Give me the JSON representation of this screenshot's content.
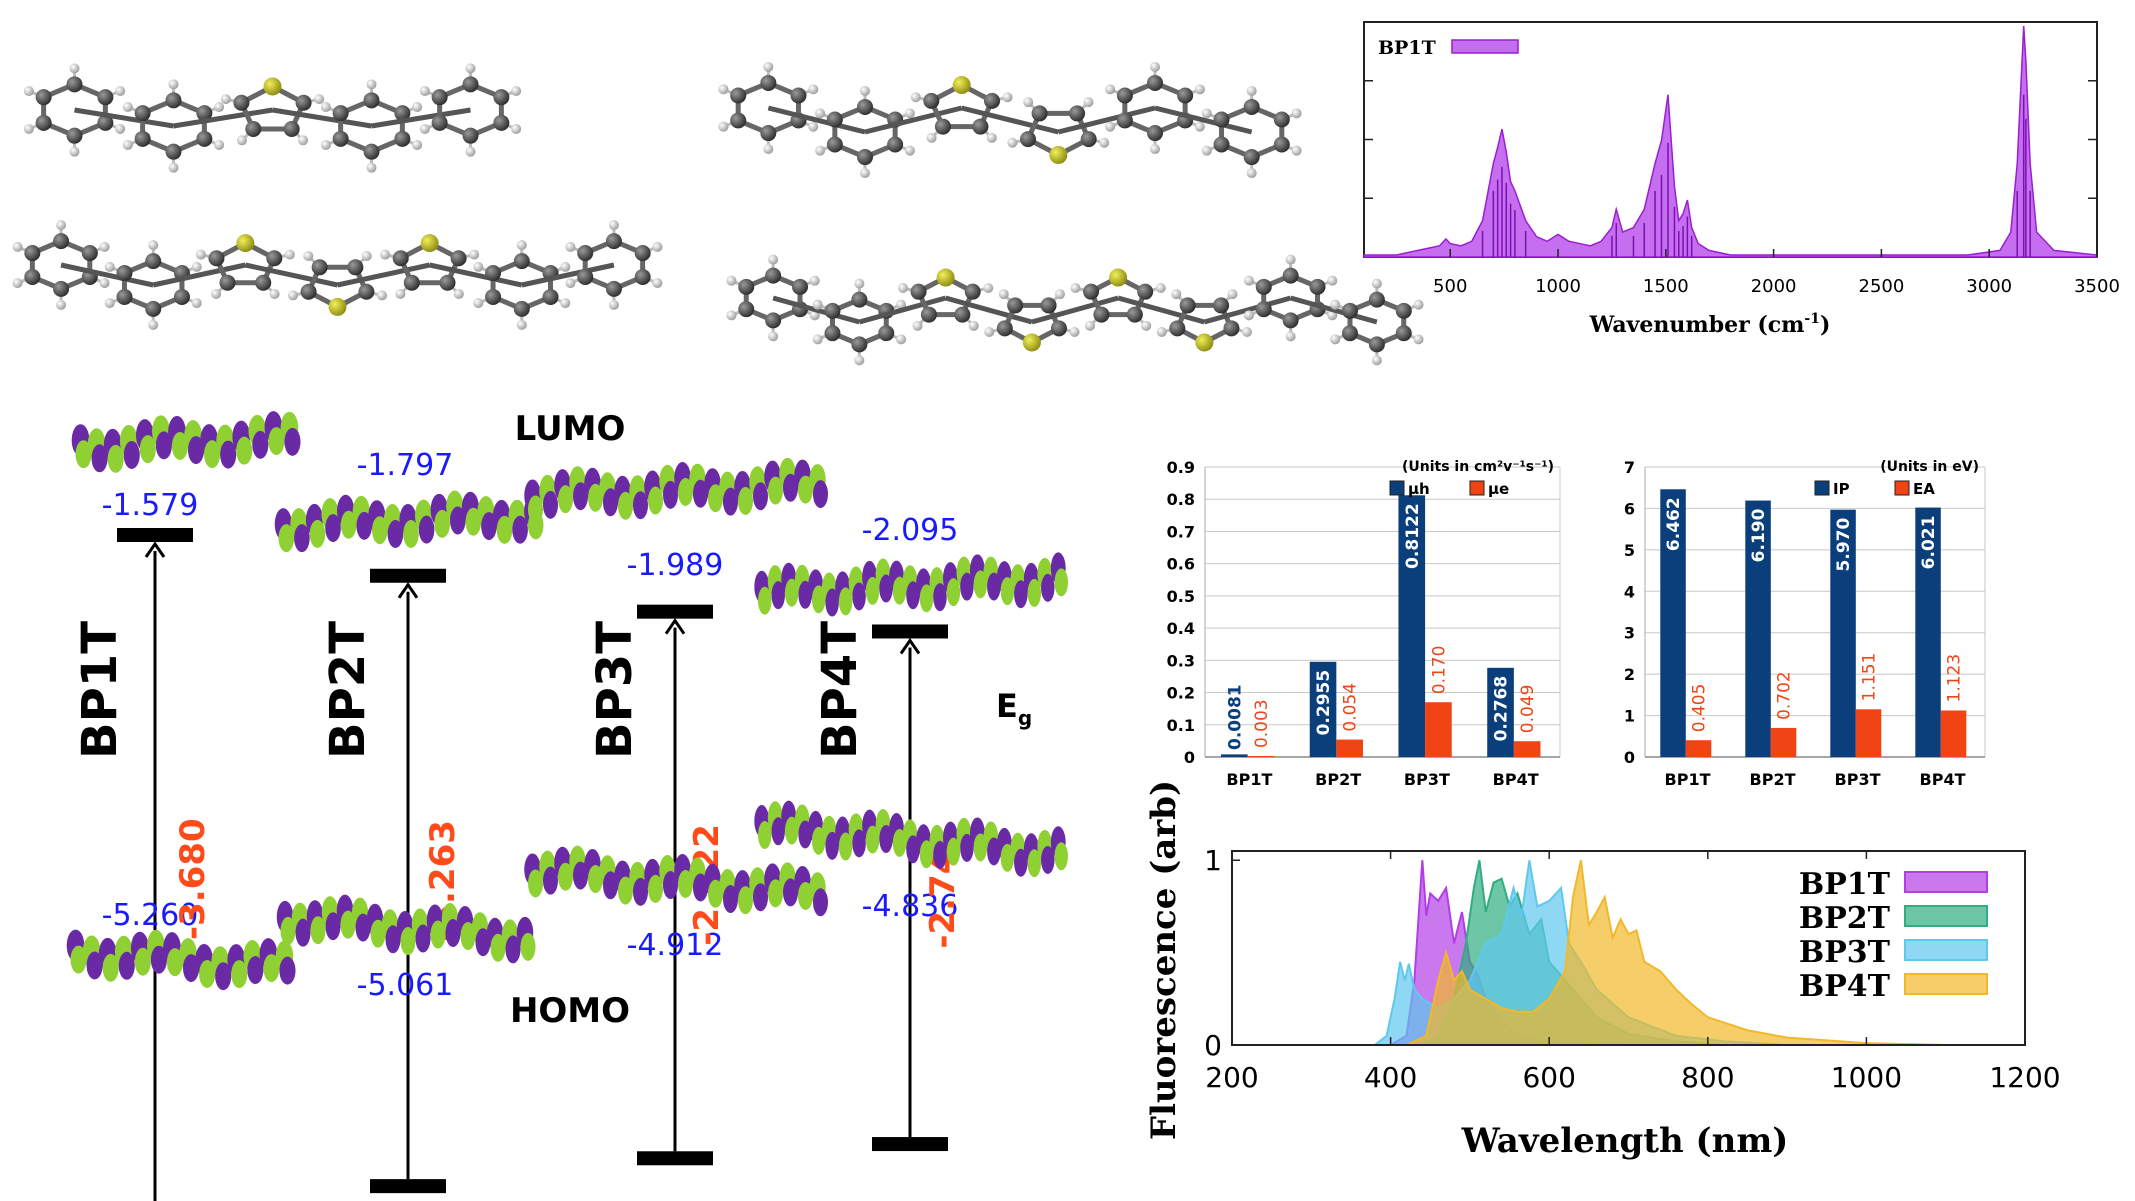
{
  "ir": {
    "legend": "BP1T",
    "xlabel": "Wavenumber (cm",
    "xlabel_sup": "-1",
    "xlabel_end": ")",
    "xticks": [
      "500",
      "1000",
      "1500",
      "2000",
      "2500",
      "3000",
      "3500"
    ]
  },
  "energy": {
    "lumo_title": "LUMO",
    "homo_title": "HOMO",
    "eg_label": "E",
    "eg_sub": "g",
    "molecules": [
      {
        "name": "BP1T",
        "lumo": "-1.579",
        "homo": "-5.260",
        "gap": "-3.680"
      },
      {
        "name": "BP2T",
        "lumo": "-1.797",
        "homo": "-5.061",
        "gap": "-3.263"
      },
      {
        "name": "BP3T",
        "lumo": "-1.989",
        "homo": "-4.912",
        "gap": "-2.922"
      },
      {
        "name": "BP4T",
        "lumo": "-2.095",
        "homo": "-4.836",
        "gap": "-2.741"
      }
    ]
  },
  "colors": {
    "accent_purple": "#b23ee6",
    "blue_bar": "#0b3f7c",
    "orange_bar": "#f04414",
    "energy_value_blue": "#1a1aff",
    "gap_orange": "#ff4a1a",
    "orbital_green": "#8fd133",
    "orbital_purple": "#6a2aa6"
  },
  "chart_data": [
    {
      "type": "area",
      "id": "ir_spectrum",
      "series": [
        {
          "name": "BP1T",
          "x": [
            100,
            250,
            350,
            450,
            480,
            500,
            550,
            600,
            650,
            700,
            720,
            740,
            760,
            780,
            800,
            850,
            900,
            950,
            1000,
            1050,
            1100,
            1150,
            1200,
            1250,
            1270,
            1300,
            1350,
            1400,
            1450,
            1480,
            1510,
            1540,
            1560,
            1580,
            1600,
            1620,
            1650,
            1700,
            1800,
            2000,
            2500,
            2900,
            3050,
            3100,
            3130,
            3160,
            3170,
            3190,
            3220,
            3300,
            3500
          ],
          "y": [
            0,
            0,
            0.02,
            0.04,
            0.07,
            0.05,
            0.04,
            0.06,
            0.15,
            0.4,
            0.47,
            0.55,
            0.45,
            0.32,
            0.28,
            0.15,
            0.08,
            0.06,
            0.09,
            0.06,
            0.05,
            0.04,
            0.06,
            0.12,
            0.2,
            0.1,
            0.12,
            0.2,
            0.4,
            0.5,
            0.7,
            0.3,
            0.15,
            0.18,
            0.24,
            0.12,
            0.05,
            0.02,
            0,
            0,
            0,
            0,
            0.02,
            0.1,
            0.4,
            1.0,
            0.85,
            0.4,
            0.1,
            0.02,
            0
          ]
        }
      ],
      "xlabel": "Wavenumber (cm-1)",
      "xlim": [
        100,
        3500
      ],
      "legend": "top-left"
    },
    {
      "type": "bar",
      "id": "mobility",
      "categories": [
        "BP1T",
        "BP2T",
        "BP3T",
        "BP4T"
      ],
      "series": [
        {
          "name": "μh",
          "values": [
            0.0081,
            0.2955,
            0.8122,
            0.2768
          ],
          "labels": [
            "0.0081",
            "0.2955",
            "0.8122",
            "0.2768"
          ]
        },
        {
          "name": "μe",
          "values": [
            0.003,
            0.054,
            0.17,
            0.049
          ],
          "labels": [
            "0.003",
            "0.054",
            "0.170",
            "0.049"
          ]
        }
      ],
      "note": "(Units in cm²v⁻¹s⁻¹)",
      "yticks": [
        "0",
        "0.1",
        "0.2",
        "0.3",
        "0.4",
        "0.5",
        "0.6",
        "0.7",
        "0.8",
        "0.9"
      ],
      "ylim": [
        0,
        0.9
      ],
      "grid": true,
      "legend": "top-right"
    },
    {
      "type": "bar",
      "id": "ip_ea",
      "categories": [
        "BP1T",
        "BP2T",
        "BP3T",
        "BP4T"
      ],
      "series": [
        {
          "name": "IP",
          "values": [
            6.462,
            6.19,
            5.97,
            6.021
          ],
          "labels": [
            "6.462",
            "6.190",
            "5.970",
            "6.021"
          ]
        },
        {
          "name": "EA",
          "values": [
            0.405,
            0.702,
            1.151,
            1.123
          ],
          "labels": [
            "0.405",
            "0.702",
            "1.151",
            "1.123"
          ]
        }
      ],
      "note": "(Units in eV)",
      "yticks": [
        "0",
        "1",
        "2",
        "3",
        "4",
        "5",
        "6",
        "7"
      ],
      "ylim": [
        0,
        7
      ],
      "grid": true,
      "legend": "top-right"
    },
    {
      "type": "area",
      "id": "fluorescence",
      "xlabel": "Wavelength (nm)",
      "ylabel": "Fluorescence (arb)",
      "xticks": [
        "200",
        "400",
        "600",
        "800",
        "1000",
        "1200"
      ],
      "yticks": [
        "0",
        "1"
      ],
      "xlim": [
        200,
        1200
      ],
      "ylim": [
        0,
        1.05
      ],
      "legend": "top-right",
      "series": [
        {
          "name": "BP1T",
          "color": "#b23ee6",
          "x": [
            400,
            420,
            430,
            440,
            445,
            450,
            460,
            470,
            480,
            490,
            500,
            510,
            520,
            540,
            560,
            580,
            600,
            640,
            700
          ],
          "y": [
            0,
            0.05,
            0.35,
            1.0,
            0.7,
            0.82,
            0.78,
            0.85,
            0.55,
            0.72,
            0.45,
            0.38,
            0.25,
            0.12,
            0.06,
            0.03,
            0.02,
            0.01,
            0
          ]
        },
        {
          "name": "BP2T",
          "color": "#2fae80",
          "x": [
            440,
            460,
            480,
            495,
            505,
            512,
            520,
            530,
            540,
            550,
            560,
            575,
            590,
            600,
            620,
            640,
            660,
            700,
            760,
            820
          ],
          "y": [
            0,
            0.05,
            0.25,
            0.55,
            0.85,
            1.0,
            0.72,
            0.88,
            0.9,
            0.75,
            0.82,
            0.6,
            0.68,
            0.45,
            0.35,
            0.25,
            0.15,
            0.06,
            0.02,
            0
          ]
        },
        {
          "name": "BP3T",
          "color": "#60c8ee",
          "x": [
            380,
            395,
            405,
            412,
            418,
            423,
            430,
            440,
            460,
            480,
            500,
            520,
            540,
            555,
            565,
            575,
            585,
            600,
            615,
            625,
            640,
            660,
            700,
            760,
            820,
            900
          ],
          "y": [
            0,
            0.05,
            0.25,
            0.45,
            0.35,
            0.44,
            0.3,
            0.25,
            0.2,
            0.25,
            0.35,
            0.55,
            0.6,
            0.85,
            0.7,
            1.0,
            0.75,
            0.78,
            0.85,
            0.55,
            0.45,
            0.3,
            0.15,
            0.05,
            0.02,
            0
          ]
        },
        {
          "name": "BP4T",
          "color": "#f1b82a",
          "x": [
            420,
            445,
            460,
            470,
            480,
            490,
            500,
            520,
            540,
            560,
            580,
            600,
            620,
            630,
            640,
            650,
            660,
            670,
            680,
            690,
            700,
            710,
            720,
            740,
            760,
            780,
            800,
            850,
            900,
            1000,
            1100
          ],
          "y": [
            0,
            0.05,
            0.35,
            0.5,
            0.35,
            0.4,
            0.3,
            0.25,
            0.2,
            0.18,
            0.18,
            0.25,
            0.4,
            0.8,
            1.0,
            0.65,
            0.72,
            0.8,
            0.58,
            0.68,
            0.6,
            0.62,
            0.45,
            0.4,
            0.3,
            0.22,
            0.15,
            0.08,
            0.04,
            0.01,
            0
          ]
        }
      ]
    }
  ]
}
